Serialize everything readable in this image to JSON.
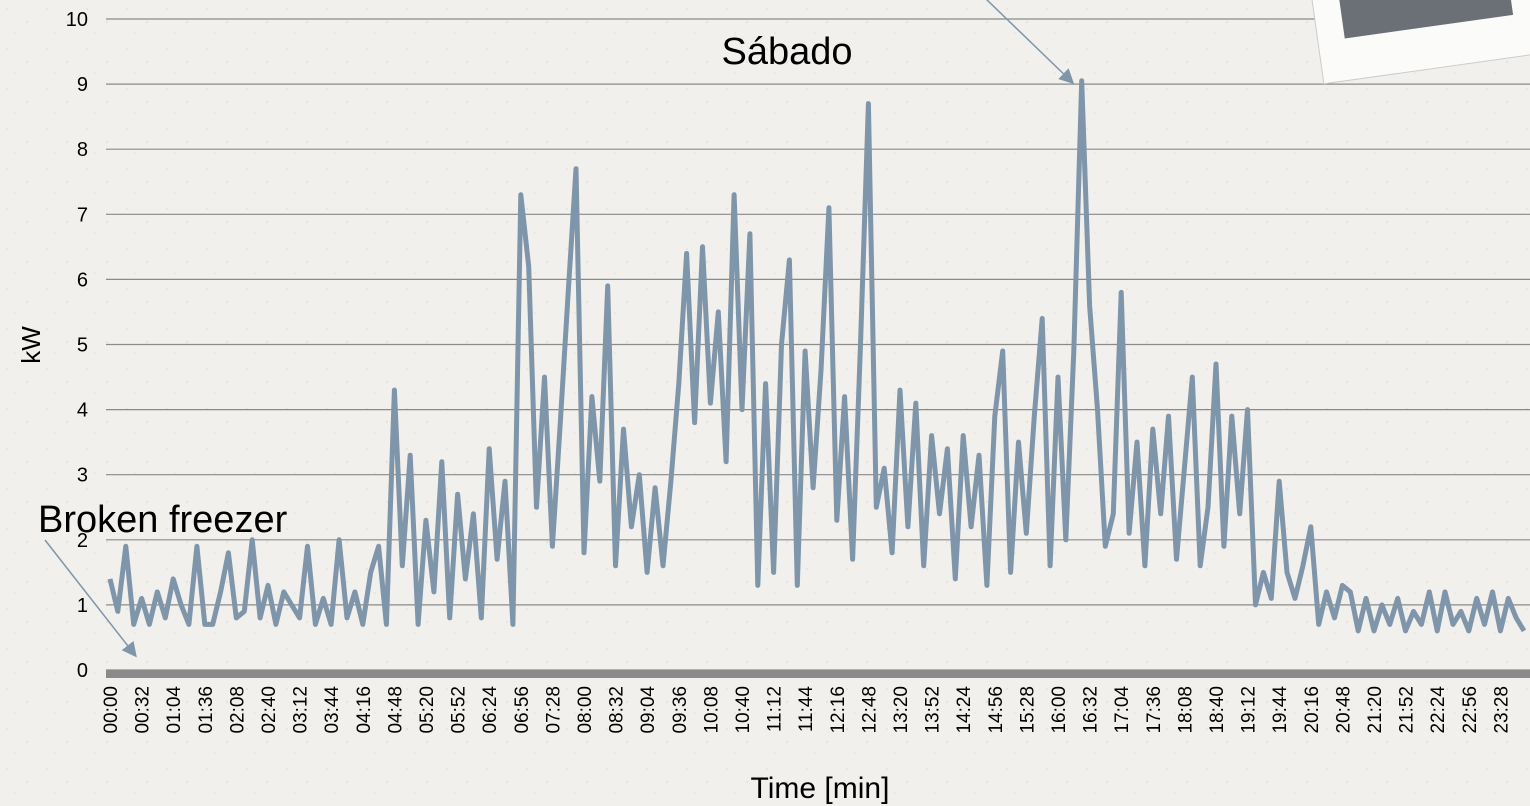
{
  "chart_data": {
    "type": "line",
    "title": "Sábado",
    "annotation": "Broken freezer",
    "x_label": "Time [min]",
    "y_label": "kW",
    "categories": [
      "00:00",
      null,
      null,
      null,
      "00:32",
      null,
      null,
      null,
      "01:04",
      null,
      null,
      null,
      "01:36",
      null,
      null,
      null,
      "02:08",
      null,
      null,
      null,
      "02:40",
      null,
      null,
      null,
      "03:12",
      null,
      null,
      null,
      "03:44",
      null,
      null,
      null,
      "04:16",
      null,
      null,
      null,
      "04:48",
      null,
      null,
      null,
      "05:20",
      null,
      null,
      null,
      "05:52",
      null,
      null,
      null,
      "06:24",
      null,
      null,
      null,
      "06:56",
      null,
      null,
      null,
      "07:28",
      null,
      null,
      null,
      "08:00",
      null,
      null,
      null,
      "08:32",
      null,
      null,
      null,
      "09:04",
      null,
      null,
      null,
      "09:36",
      null,
      null,
      null,
      "10:08",
      null,
      null,
      null,
      "10:40",
      null,
      null,
      null,
      "11:12",
      null,
      null,
      null,
      "11:44",
      null,
      null,
      null,
      "12:16",
      null,
      null,
      null,
      "12:48",
      null,
      null,
      null,
      "13:20",
      null,
      null,
      null,
      "13:52",
      null,
      null,
      null,
      "14:24",
      null,
      null,
      null,
      "14:56",
      null,
      null,
      null,
      "15:28",
      null,
      null,
      null,
      "16:00",
      null,
      null,
      null,
      "16:32",
      null,
      null,
      null,
      "17:04",
      null,
      null,
      null,
      "17:36",
      null,
      null,
      null,
      "18:08",
      null,
      null,
      null,
      "18:40",
      null,
      null,
      null,
      "19:12",
      null,
      null,
      null,
      "19:44",
      null,
      null,
      null,
      "20:16",
      null,
      null,
      null,
      "20:48",
      null,
      null,
      null,
      "21:20",
      null,
      null,
      null,
      "21:52",
      null,
      null,
      null,
      "22:24",
      null,
      null,
      null,
      "22:56",
      null,
      null,
      null,
      "23:28",
      null,
      null,
      null
    ],
    "values": [
      1.4,
      0.9,
      1.9,
      0.7,
      1.1,
      0.7,
      1.2,
      0.8,
      1.4,
      1.0,
      0.7,
      1.9,
      0.7,
      0.7,
      1.2,
      1.8,
      0.8,
      0.9,
      2.0,
      0.8,
      1.3,
      0.7,
      1.2,
      1.0,
      0.8,
      1.9,
      0.7,
      1.1,
      0.7,
      2.0,
      0.8,
      1.2,
      0.7,
      1.5,
      1.9,
      0.7,
      4.3,
      1.6,
      3.3,
      0.7,
      2.3,
      1.2,
      3.2,
      0.8,
      2.7,
      1.4,
      2.4,
      0.8,
      3.4,
      1.7,
      2.9,
      0.7,
      7.3,
      6.2,
      2.5,
      4.5,
      1.9,
      3.8,
      5.8,
      7.7,
      1.8,
      4.2,
      2.9,
      5.9,
      1.6,
      3.7,
      2.2,
      3.0,
      1.5,
      2.8,
      1.6,
      2.9,
      4.4,
      6.4,
      3.8,
      6.5,
      4.1,
      5.5,
      3.2,
      7.3,
      4.0,
      6.7,
      1.3,
      4.4,
      1.5,
      5.0,
      6.3,
      1.3,
      4.9,
      2.8,
      4.6,
      7.1,
      2.3,
      4.2,
      1.7,
      5.0,
      8.7,
      2.5,
      3.1,
      1.8,
      4.3,
      2.2,
      4.1,
      1.6,
      3.6,
      2.4,
      3.4,
      1.4,
      3.6,
      2.2,
      3.3,
      1.3,
      3.9,
      4.9,
      1.5,
      3.5,
      2.1,
      3.9,
      5.4,
      1.6,
      4.5,
      2.0,
      4.9,
      9.05,
      5.6,
      4.0,
      1.9,
      2.4,
      5.8,
      2.1,
      3.5,
      1.6,
      3.7,
      2.4,
      3.9,
      1.7,
      3.1,
      4.5,
      1.6,
      2.5,
      4.7,
      1.9,
      3.9,
      2.4,
      4.0,
      1.0,
      1.5,
      1.1,
      2.9,
      1.5,
      1.1,
      1.6,
      2.2,
      0.7,
      1.2,
      0.8,
      1.3,
      1.2,
      0.6,
      1.1,
      0.6,
      1.0,
      0.7,
      1.1,
      0.6,
      0.9,
      0.7,
      1.2,
      0.6,
      1.2,
      0.7,
      0.9,
      0.6,
      1.1,
      0.7,
      1.2,
      0.6,
      1.1,
      0.8,
      0.6
    ],
    "color": "#7f95aa",
    "ylim": [
      0,
      10
    ],
    "yticks": [
      0,
      1,
      2,
      3,
      4,
      5,
      6,
      7,
      8,
      9,
      10
    ],
    "grid": true
  }
}
